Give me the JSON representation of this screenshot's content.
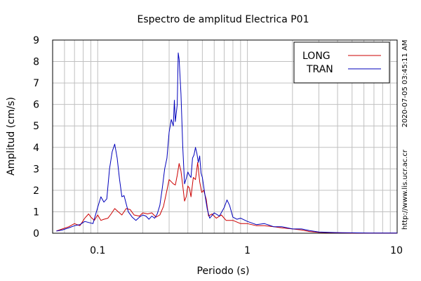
{
  "chart_data": {
    "type": "line",
    "title": "Espectro de amplitud Electrica P01",
    "xlabel": "Periodo (s)",
    "ylabel": "Amplitud (cm/s)",
    "x_scale": "log",
    "xlim": [
      0.05,
      10
    ],
    "ylim": [
      0,
      9
    ],
    "x_ticks": [
      0.1,
      1,
      10
    ],
    "x_tick_labels": [
      "0.1",
      "1",
      "10"
    ],
    "y_ticks": [
      0,
      1,
      2,
      3,
      4,
      5,
      6,
      7,
      8,
      9
    ],
    "y_tick_labels": [
      "0",
      "1",
      "2",
      "3",
      "4",
      "5",
      "6",
      "7",
      "8",
      "9"
    ],
    "grid": true,
    "legend_position": "top-right",
    "series": [
      {
        "name": "LONG",
        "color": "#cc0000",
        "x": [
          0.053,
          0.058,
          0.064,
          0.07,
          0.076,
          0.082,
          0.087,
          0.09,
          0.095,
          0.1,
          0.105,
          0.11,
          0.117,
          0.123,
          0.13,
          0.137,
          0.145,
          0.155,
          0.165,
          0.175,
          0.19,
          0.2,
          0.215,
          0.23,
          0.245,
          0.26,
          0.275,
          0.29,
          0.3,
          0.31,
          0.32,
          0.33,
          0.34,
          0.35,
          0.36,
          0.37,
          0.38,
          0.39,
          0.4,
          0.41,
          0.42,
          0.435,
          0.45,
          0.465,
          0.48,
          0.495,
          0.51,
          0.53,
          0.55,
          0.58,
          0.62,
          0.67,
          0.72,
          0.8,
          0.9,
          1.0,
          1.15,
          1.3,
          1.5,
          1.7,
          2.0,
          2.3,
          2.6,
          3.0,
          3.5,
          4.0,
          5.0,
          6.5,
          8.0,
          10.0
        ],
        "y": [
          0.1,
          0.2,
          0.3,
          0.45,
          0.35,
          0.7,
          0.9,
          0.75,
          0.6,
          0.85,
          0.6,
          0.65,
          0.7,
          0.9,
          1.15,
          1.0,
          0.85,
          1.15,
          1.1,
          0.85,
          0.8,
          0.95,
          0.9,
          0.95,
          0.75,
          0.85,
          1.25,
          2.0,
          2.5,
          2.4,
          2.3,
          2.25,
          2.7,
          3.25,
          2.9,
          2.2,
          1.5,
          1.7,
          2.2,
          2.1,
          1.7,
          2.6,
          2.5,
          3.3,
          2.4,
          1.9,
          2.0,
          1.6,
          0.8,
          0.9,
          0.7,
          0.85,
          0.6,
          0.6,
          0.45,
          0.45,
          0.35,
          0.35,
          0.3,
          0.25,
          0.2,
          0.15,
          0.08,
          0.04,
          0.03,
          0.02,
          0.01,
          0.01,
          0.01,
          0.01
        ]
      },
      {
        "name": "TRAN",
        "color": "#0000bb",
        "x": [
          0.053,
          0.058,
          0.064,
          0.07,
          0.076,
          0.082,
          0.087,
          0.093,
          0.1,
          0.105,
          0.11,
          0.115,
          0.12,
          0.125,
          0.13,
          0.135,
          0.14,
          0.145,
          0.15,
          0.16,
          0.17,
          0.18,
          0.19,
          0.2,
          0.21,
          0.22,
          0.23,
          0.24,
          0.25,
          0.26,
          0.27,
          0.28,
          0.29,
          0.3,
          0.31,
          0.32,
          0.325,
          0.33,
          0.34,
          0.345,
          0.35,
          0.36,
          0.37,
          0.38,
          0.39,
          0.4,
          0.41,
          0.42,
          0.43,
          0.44,
          0.45,
          0.46,
          0.47,
          0.48,
          0.49,
          0.5,
          0.52,
          0.54,
          0.56,
          0.6,
          0.65,
          0.7,
          0.73,
          0.76,
          0.8,
          0.85,
          0.9,
          1.0,
          1.15,
          1.3,
          1.5,
          1.7,
          2.0,
          2.3,
          2.6,
          3.0,
          3.5,
          4.0,
          5.0,
          6.5,
          8.0,
          10.0
        ],
        "y": [
          0.1,
          0.15,
          0.25,
          0.35,
          0.4,
          0.55,
          0.5,
          0.45,
          1.2,
          1.7,
          1.45,
          1.6,
          3.0,
          3.8,
          4.15,
          3.5,
          2.5,
          1.7,
          1.75,
          1.0,
          0.75,
          0.6,
          0.75,
          0.85,
          0.8,
          0.65,
          0.8,
          0.7,
          0.9,
          1.3,
          2.1,
          3.0,
          3.5,
          4.7,
          5.3,
          5.0,
          6.2,
          5.2,
          6.0,
          8.4,
          8.1,
          6.5,
          4.0,
          2.3,
          2.55,
          2.85,
          2.7,
          2.6,
          3.5,
          3.65,
          4.0,
          3.7,
          3.3,
          3.6,
          2.8,
          2.6,
          1.8,
          1.1,
          0.7,
          0.95,
          0.8,
          1.2,
          1.55,
          1.3,
          0.75,
          0.65,
          0.7,
          0.55,
          0.4,
          0.45,
          0.3,
          0.3,
          0.2,
          0.2,
          0.12,
          0.06,
          0.04,
          0.03,
          0.02,
          0.01,
          0.01,
          0.01
        ]
      }
    ],
    "annotations": [
      "2020-07-05 03:45:11 AM",
      "http://www.lis.ucr.ac.cr"
    ]
  }
}
